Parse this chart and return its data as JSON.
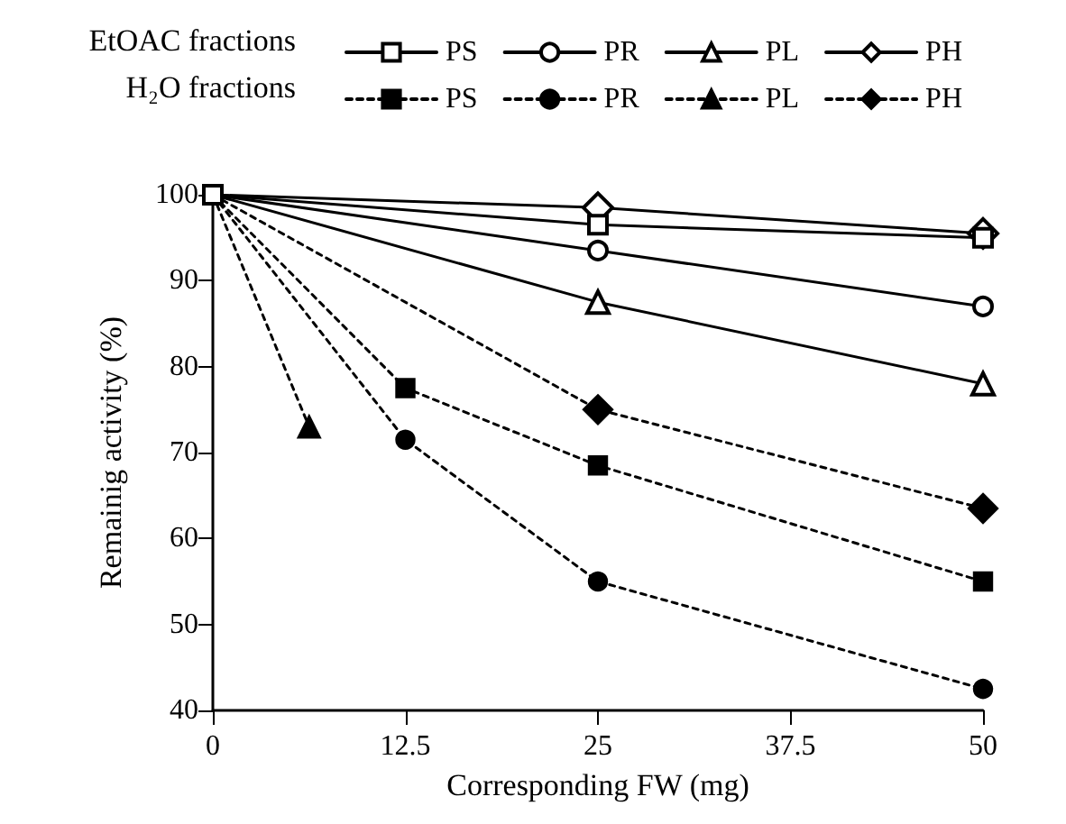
{
  "chart_data": {
    "type": "line",
    "xlabel": "Corresponding FW (mg)",
    "ylabel": "Remainig activity (%)",
    "xlim": [
      0,
      50
    ],
    "xticks": [
      0,
      12.5,
      25,
      37.5,
      50
    ],
    "ylim": [
      40,
      100
    ],
    "yticks": [
      40,
      50,
      60,
      70,
      80,
      90,
      100
    ],
    "grid": false,
    "legend": "top",
    "annotations": [
      "EtOAC fractions",
      "H₂O fractions"
    ],
    "series": [
      {
        "name": "PS",
        "color": "#000000",
        "marker": "square",
        "line_style": "solid",
        "x": [
          0,
          25,
          50
        ],
        "values": [
          100,
          96.5,
          95
        ]
      },
      {
        "name": "PR",
        "color": "#000000",
        "marker": "circle",
        "line_style": "solid",
        "x": [
          0,
          25,
          50
        ],
        "values": [
          100,
          93.5,
          87
        ]
      },
      {
        "name": "PL",
        "color": "#000000",
        "marker": "triangle",
        "line_style": "solid",
        "x": [
          0,
          25,
          50
        ],
        "values": [
          100,
          87.5,
          78
        ]
      },
      {
        "name": "PH",
        "color": "#000000",
        "marker": "diamond",
        "line_style": "solid",
        "x": [
          0,
          25,
          50
        ],
        "values": [
          100,
          98.5,
          95.5
        ]
      },
      {
        "name": "PS",
        "color": "#000000",
        "marker": "square",
        "line_style": "dashed",
        "x": [
          0,
          12.5,
          25,
          50
        ],
        "values": [
          100,
          77.5,
          68.5,
          55
        ]
      },
      {
        "name": "PR",
        "color": "#000000",
        "marker": "circle",
        "line_style": "dashed",
        "x": [
          0,
          12.5,
          25,
          50
        ],
        "values": [
          100,
          71.5,
          55,
          42.5
        ]
      },
      {
        "name": "PL",
        "color": "#000000",
        "marker": "triangle",
        "line_style": "dashed",
        "x": [
          0,
          6.25
        ],
        "values": [
          100,
          73
        ]
      },
      {
        "name": "PH",
        "color": "#000000",
        "marker": "diamond",
        "line_style": "dashed",
        "x": [
          0,
          25,
          50
        ],
        "values": [
          100,
          75,
          63.5
        ]
      }
    ]
  }
}
